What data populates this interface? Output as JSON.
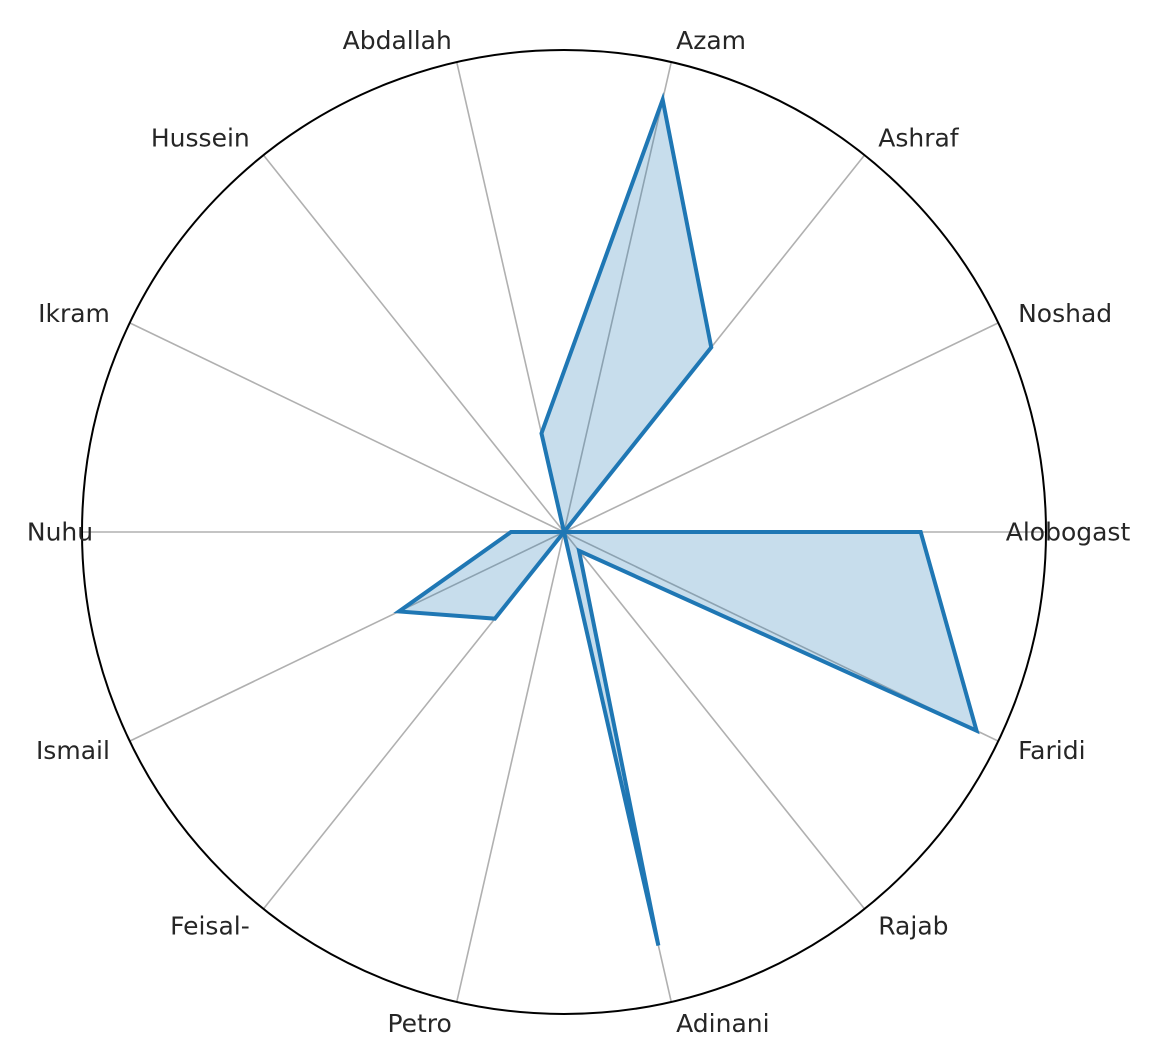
{
  "chart_data": {
    "type": "radar",
    "categories": [
      "Alobogast",
      "Noshad",
      "Ashraf",
      "Azam",
      "Abdallah",
      "Hussein",
      "Ikram",
      "Nuhu",
      "Ismail",
      "Feisal-",
      "Petro",
      "Adinani",
      "Rajab",
      "Faridi"
    ],
    "series": [
      {
        "values": [
          0.74,
          0.0,
          0.49,
          0.92,
          0.21,
          0.0,
          0.0,
          0.11,
          0.38,
          0.23,
          0.0,
          0.88,
          0.05,
          0.95
        ]
      }
    ],
    "rlim": [
      0,
      1
    ],
    "radial_ticks_visible": false,
    "grid": true,
    "colors": {
      "line": "#1f77b4",
      "fill": "#1f77b4",
      "fill_opacity": 0.25,
      "grid": "#b0b0b0",
      "frame": "#000000",
      "text": "#262626"
    }
  }
}
